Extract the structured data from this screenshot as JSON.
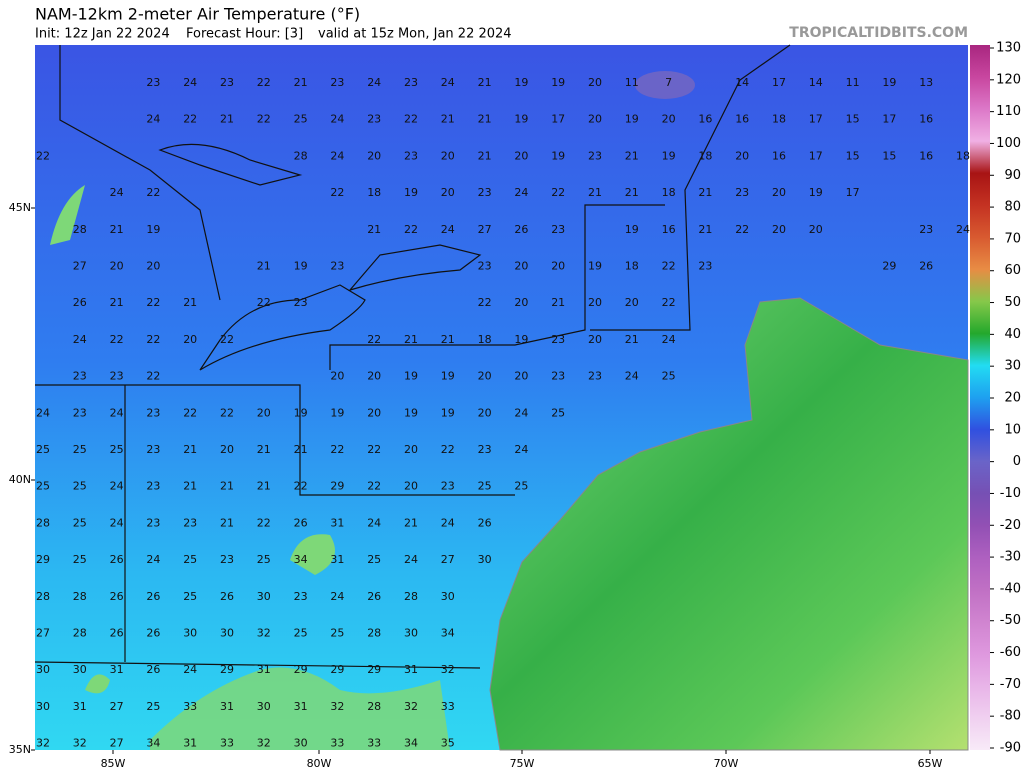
{
  "header": {
    "title": "NAM-12km 2-meter Air Temperature (°F)",
    "init": "Init: 12z Jan 22 2024",
    "forecast_hour": "Forecast Hour: [3]",
    "valid": "valid at 15z Mon, Jan 22 2024",
    "watermark": "TROPICALTIDBITS.COM"
  },
  "map": {
    "lat_labels": [
      "45N",
      "40N",
      "35N"
    ],
    "lon_labels": [
      "85W",
      "80W",
      "75W",
      "70W",
      "65W"
    ]
  },
  "colorbar": {
    "ticks": [
      130,
      120,
      110,
      100,
      90,
      80,
      70,
      60,
      50,
      40,
      30,
      20,
      10,
      0,
      -10,
      -20,
      -30,
      -40,
      -50,
      -60,
      -70,
      -80,
      -90
    ],
    "colors": [
      "#a8267f",
      "#c8469f",
      "#dc78c8",
      "#f0b0e4",
      "#a81414",
      "#c43222",
      "#d85a30",
      "#e88c44",
      "#86c84a",
      "#24a82c",
      "#22dcf2",
      "#1ea0f0",
      "#3050e0",
      "#6a64c8",
      "#7650b4",
      "#9250b4",
      "#ae60c0",
      "#c070c4",
      "#d084d0",
      "#de98de",
      "#e8b4e8",
      "#f0d0f0",
      "#f8eaf8"
    ]
  },
  "temperatures": [
    [
      null,
      null,
      null,
      23,
      24,
      23,
      22,
      21,
      23,
      24,
      23,
      24,
      21,
      19,
      19,
      20,
      11,
      7,
      null,
      14,
      17,
      14,
      11,
      19,
      13,
      null
    ],
    [
      null,
      null,
      null,
      24,
      22,
      21,
      22,
      25,
      24,
      23,
      22,
      21,
      21,
      19,
      17,
      20,
      19,
      20,
      16,
      16,
      18,
      17,
      15,
      17,
      16,
      null
    ],
    [
      22,
      null,
      null,
      null,
      null,
      null,
      null,
      28,
      24,
      20,
      23,
      20,
      21,
      20,
      19,
      23,
      21,
      19,
      18,
      20,
      16,
      17,
      15,
      15,
      16,
      18
    ],
    [
      null,
      null,
      24,
      22,
      null,
      null,
      null,
      null,
      22,
      18,
      19,
      20,
      23,
      24,
      22,
      21,
      21,
      18,
      21,
      23,
      20,
      19,
      17,
      null,
      null,
      null
    ],
    [
      null,
      28,
      21,
      19,
      null,
      null,
      null,
      null,
      null,
      21,
      22,
      24,
      27,
      26,
      23,
      null,
      19,
      16,
      21,
      22,
      20,
      20,
      null,
      null,
      23,
      24
    ],
    [
      null,
      27,
      20,
      20,
      null,
      null,
      21,
      19,
      23,
      null,
      null,
      null,
      23,
      20,
      20,
      19,
      18,
      22,
      23,
      null,
      null,
      null,
      null,
      29,
      26,
      null
    ],
    [
      null,
      26,
      21,
      22,
      21,
      null,
      22,
      23,
      null,
      null,
      null,
      null,
      22,
      20,
      21,
      20,
      20,
      22
    ],
    [
      null,
      24,
      22,
      22,
      20,
      22,
      null,
      null,
      null,
      22,
      21,
      21,
      18,
      19,
      23,
      20,
      21,
      24
    ],
    [
      null,
      23,
      23,
      22,
      null,
      null,
      null,
      null,
      20,
      20,
      19,
      19,
      20,
      20,
      23,
      23,
      24,
      25
    ],
    [
      24,
      23,
      24,
      23,
      22,
      22,
      20,
      19,
      19,
      20,
      19,
      19,
      20,
      24,
      25
    ],
    [
      25,
      25,
      25,
      23,
      21,
      20,
      21,
      21,
      22,
      22,
      20,
      22,
      23,
      24
    ],
    [
      25,
      25,
      24,
      23,
      21,
      21,
      21,
      22,
      29,
      22,
      20,
      23,
      25,
      25
    ],
    [
      28,
      25,
      24,
      23,
      23,
      21,
      22,
      26,
      31,
      24,
      21,
      24,
      26
    ],
    [
      29,
      25,
      26,
      24,
      25,
      23,
      25,
      34,
      31,
      25,
      24,
      27,
      30
    ],
    [
      28,
      28,
      26,
      26,
      25,
      26,
      30,
      23,
      24,
      26,
      28,
      30
    ],
    [
      27,
      28,
      26,
      26,
      30,
      30,
      32,
      25,
      25,
      28,
      30,
      34
    ],
    [
      30,
      30,
      31,
      26,
      24,
      29,
      31,
      29,
      29,
      29,
      31,
      32
    ],
    [
      30,
      31,
      27,
      25,
      33,
      31,
      30,
      31,
      32,
      28,
      32,
      33
    ],
    [
      32,
      32,
      27,
      34,
      31,
      33,
      32,
      30,
      33,
      33,
      34,
      35
    ]
  ]
}
